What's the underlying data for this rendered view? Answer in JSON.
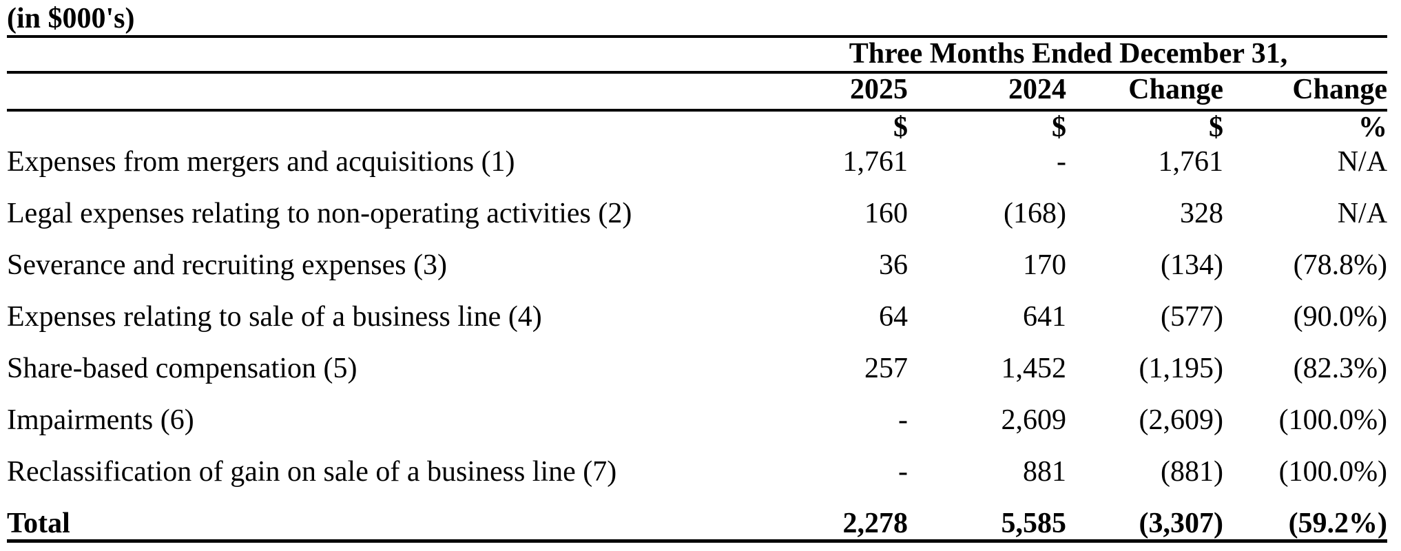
{
  "title": "(in $000's)",
  "table": {
    "period_header": "Three Months Ended December 31,",
    "columns": [
      "2025",
      "2024",
      "Change",
      "Change"
    ],
    "units": [
      "$",
      "$",
      "$",
      "%"
    ],
    "rows": [
      {
        "label": "Expenses from mergers and acquisitions (1)",
        "values": [
          "1,761",
          "-",
          "1,761",
          "N/A"
        ]
      },
      {
        "label": "Legal expenses relating to non-operating activities (2)",
        "values": [
          "160",
          "(168)",
          "328",
          "N/A"
        ]
      },
      {
        "label": "Severance and recruiting expenses (3)",
        "values": [
          "36",
          "170",
          "(134)",
          "(78.8%)"
        ]
      },
      {
        "label": "Expenses relating to sale of a business line (4)",
        "values": [
          "64",
          "641",
          "(577)",
          "(90.0%)"
        ]
      },
      {
        "label": "Share-based compensation (5)",
        "values": [
          "257",
          "1,452",
          "(1,195)",
          "(82.3%)"
        ]
      },
      {
        "label": "Impairments (6)",
        "values": [
          "-",
          "2,609",
          "(2,609)",
          "(100.0%)"
        ]
      },
      {
        "label": "Reclassification of gain on sale of a business line (7)",
        "values": [
          "-",
          "881",
          "(881)",
          "(100.0%)"
        ]
      }
    ],
    "total": {
      "label": "Total",
      "values": [
        "2,278",
        "5,585",
        "(3,307)",
        "(59.2%)"
      ]
    }
  }
}
